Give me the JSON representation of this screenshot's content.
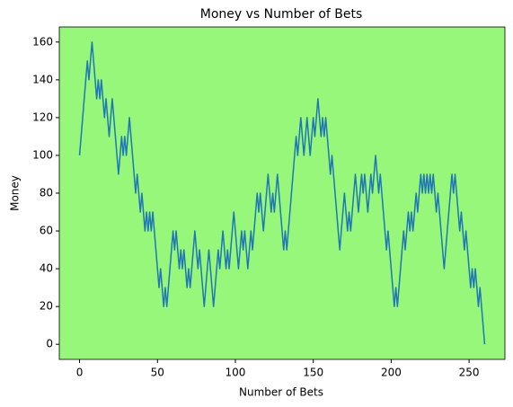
{
  "chart_data": {
    "type": "line",
    "title": "Money vs Number of Bets",
    "x_label": "Number of Bets",
    "y_label": "Money",
    "x": [
      0,
      1,
      2,
      3,
      4,
      5,
      6,
      7,
      8,
      9,
      10,
      11,
      12,
      13,
      14,
      15,
      16,
      17,
      18,
      19,
      20,
      21,
      22,
      23,
      24,
      25,
      26,
      27,
      28,
      29,
      30,
      31,
      32,
      33,
      34,
      35,
      36,
      37,
      38,
      39,
      40,
      41,
      42,
      43,
      44,
      45,
      46,
      47,
      48,
      49,
      50,
      51,
      52,
      53,
      54,
      55,
      56,
      57,
      58,
      59,
      60,
      61,
      62,
      63,
      64,
      65,
      66,
      67,
      68,
      69,
      70,
      71,
      72,
      73,
      74,
      75,
      76,
      77,
      78,
      79,
      80,
      81,
      82,
      83,
      84,
      85,
      86,
      87,
      88,
      89,
      90,
      91,
      92,
      93,
      94,
      95,
      96,
      97,
      98,
      99,
      100,
      101,
      102,
      103,
      104,
      105,
      106,
      107,
      108,
      109,
      110,
      111,
      112,
      113,
      114,
      115,
      116,
      117,
      118,
      119,
      120,
      121,
      122,
      123,
      124,
      125,
      126,
      127,
      128,
      129,
      130,
      131,
      132,
      133,
      134,
      135,
      136,
      137,
      138,
      139,
      140,
      141,
      142,
      143,
      144,
      145,
      146,
      147,
      148,
      149,
      150,
      151,
      152,
      153,
      154,
      155,
      156,
      157,
      158,
      159,
      160,
      161,
      162,
      163,
      164,
      165,
      166,
      167,
      168,
      169,
      170,
      171,
      172,
      173,
      174,
      175,
      176,
      177,
      178,
      179,
      180,
      181,
      182,
      183,
      184,
      185,
      186,
      187,
      188,
      189,
      190,
      191,
      192,
      193,
      194,
      195,
      196,
      197,
      198,
      199,
      200,
      201,
      202,
      203,
      204,
      205,
      206,
      207,
      208,
      209,
      210,
      211,
      212,
      213,
      214,
      215,
      216,
      217,
      218,
      219,
      220,
      221,
      222,
      223,
      224,
      225,
      226,
      227,
      228,
      229,
      230,
      231,
      232,
      233,
      234,
      235,
      236,
      237,
      238,
      239,
      240,
      241,
      242,
      243,
      244,
      245,
      246,
      247,
      248,
      249,
      250,
      251,
      252,
      253,
      254,
      255,
      256,
      257,
      258,
      259,
      260
    ],
    "series": [
      {
        "color": "#1f77b4",
        "values": [
          100,
          110,
          120,
          130,
          140,
          150,
          140,
          150,
          160,
          150,
          140,
          130,
          140,
          130,
          140,
          130,
          120,
          130,
          120,
          110,
          120,
          130,
          120,
          110,
          100,
          90,
          100,
          110,
          100,
          110,
          100,
          110,
          120,
          110,
          100,
          90,
          80,
          90,
          80,
          70,
          80,
          70,
          60,
          70,
          60,
          70,
          60,
          70,
          60,
          50,
          40,
          30,
          40,
          30,
          20,
          30,
          20,
          30,
          40,
          50,
          60,
          50,
          60,
          50,
          40,
          50,
          40,
          50,
          40,
          30,
          40,
          30,
          40,
          50,
          60,
          50,
          40,
          50,
          40,
          30,
          20,
          30,
          40,
          50,
          40,
          30,
          20,
          30,
          40,
          50,
          40,
          50,
          60,
          50,
          40,
          50,
          40,
          50,
          60,
          70,
          60,
          50,
          40,
          50,
          60,
          50,
          60,
          50,
          40,
          50,
          60,
          50,
          60,
          70,
          80,
          70,
          80,
          70,
          60,
          70,
          80,
          90,
          80,
          70,
          80,
          70,
          80,
          90,
          80,
          70,
          60,
          50,
          60,
          50,
          60,
          70,
          80,
          90,
          100,
          110,
          100,
          110,
          120,
          110,
          100,
          110,
          120,
          110,
          100,
          110,
          120,
          110,
          120,
          130,
          120,
          110,
          120,
          110,
          120,
          110,
          100,
          90,
          100,
          90,
          80,
          70,
          60,
          50,
          60,
          70,
          80,
          70,
          60,
          70,
          60,
          70,
          80,
          90,
          80,
          70,
          80,
          90,
          80,
          90,
          80,
          70,
          80,
          90,
          80,
          90,
          100,
          90,
          80,
          90,
          80,
          70,
          60,
          50,
          60,
          50,
          40,
          30,
          20,
          30,
          20,
          30,
          40,
          50,
          60,
          50,
          60,
          70,
          60,
          70,
          60,
          70,
          80,
          70,
          80,
          90,
          80,
          90,
          80,
          90,
          80,
          90,
          80,
          90,
          80,
          70,
          80,
          70,
          60,
          50,
          40,
          50,
          60,
          70,
          80,
          90,
          80,
          90,
          80,
          70,
          60,
          70,
          60,
          50,
          60,
          50,
          40,
          30,
          40,
          30,
          40,
          30,
          20,
          30,
          20,
          10,
          0
        ]
      }
    ],
    "xlim": [
      -13,
      273
    ],
    "ylim": [
      -8,
      168
    ],
    "xticks": [
      0,
      50,
      100,
      150,
      200,
      250
    ],
    "yticks": [
      0,
      20,
      40,
      60,
      80,
      100,
      120,
      140,
      160
    ],
    "background": "#96f77b"
  }
}
